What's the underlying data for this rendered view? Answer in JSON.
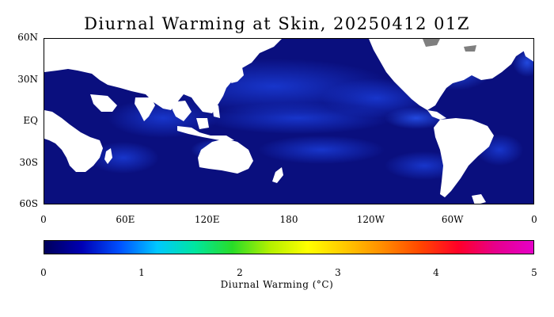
{
  "title": "Diurnal Warming at Skin, 20250412 01Z",
  "map": {
    "lat_labels": [
      "60N",
      "30N",
      "EQ",
      "30S",
      "60S"
    ],
    "lat_values": [
      60,
      30,
      0,
      -30,
      -60
    ],
    "lon_labels": [
      "0",
      "60E",
      "120E",
      "180",
      "120W",
      "60W",
      "0"
    ],
    "lon_values": [
      0,
      60,
      120,
      180,
      240,
      300,
      360
    ],
    "lat_range": [
      -60,
      60
    ],
    "lon_range": [
      0,
      360
    ],
    "land_color": "#ffffff",
    "ocean_base_color": "#0a0f7e",
    "ice_color": "#7f7f7f"
  },
  "colorbar": {
    "title": "Diurnal Warming (°C)",
    "ticks": [
      "0",
      "1",
      "2",
      "3",
      "4",
      "5"
    ],
    "tick_values": [
      0,
      1,
      2,
      3,
      4,
      5
    ],
    "range": [
      0,
      5
    ],
    "colors": [
      "#00005a",
      "#0000b4",
      "#0050ff",
      "#00c8ff",
      "#00e6a0",
      "#28dc28",
      "#b4f000",
      "#ffff00",
      "#ffc800",
      "#ff8c00",
      "#ff4600",
      "#ff0028",
      "#e6008c",
      "#e600c8"
    ]
  }
}
